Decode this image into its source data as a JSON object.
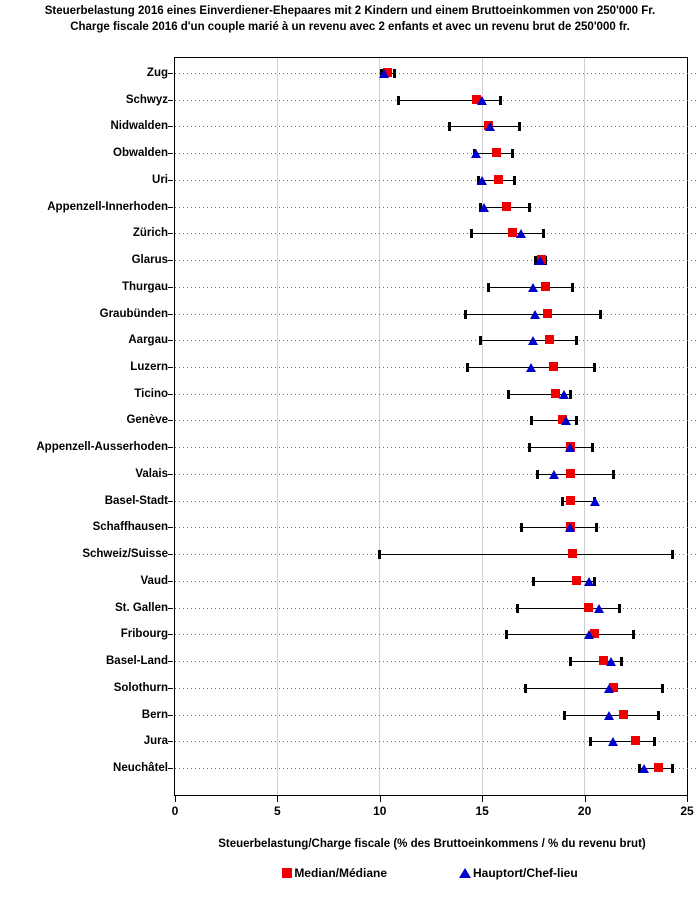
{
  "title": {
    "line1": "Steuerbelastung 2016 eines Einverdiener-Ehepaares mit 2 Kindern und einem Bruttoeinkommen von 250'000 Fr.",
    "line2": "Charge fiscale 2016 d'un couple marié à un revenu avec 2 enfants et avec un revenu brut de 250'000 fr."
  },
  "colors": {
    "median": "#ee0000",
    "hauptort": "#0000cc",
    "grid": "#cfcfcf",
    "leader": "#6e6e6e",
    "axis": "#000000"
  },
  "chart_data": {
    "type": "scatter",
    "subtype": "dot-plot-with-range-bars",
    "title": "Steuerbelastung 2016 eines Einverdiener-Ehepaares mit 2 Kindern und einem Bruttoeinkommen von 250'000 Fr. / Charge fiscale 2016 d'un couple marié à un revenu avec 2 enfants et avec un revenu brut de 250'000 fr.",
    "xlabel": "Steuerbelastung/Charge fiscale (% des Bruttoeinkommens / % du revenu brut)",
    "ylabel": "",
    "xlim": [
      0,
      25
    ],
    "xticks": [
      0,
      5,
      10,
      15,
      20,
      25
    ],
    "grid": "vertical gridlines at major ticks; dotted horizontal leader per row",
    "legend_position": "bottom-center",
    "legend": [
      {
        "label": "Median/Médiane",
        "marker": "square",
        "color": "#ee0000"
      },
      {
        "label": "Hauptort/Chef-lieu",
        "marker": "triangle",
        "color": "#0000cc"
      }
    ],
    "rows": [
      {
        "canton": "Zug",
        "min": 10.1,
        "max": 10.7,
        "median": 10.4,
        "hauptort": 10.2
      },
      {
        "canton": "Schwyz",
        "min": 10.9,
        "max": 15.9,
        "median": 14.7,
        "hauptort": 15.0
      },
      {
        "canton": "Nidwalden",
        "min": 13.4,
        "max": 16.8,
        "median": 15.3,
        "hauptort": 15.4
      },
      {
        "canton": "Obwalden",
        "min": 14.6,
        "max": 16.5,
        "median": 15.7,
        "hauptort": 14.7
      },
      {
        "canton": "Uri",
        "min": 14.8,
        "max": 16.6,
        "median": 15.8,
        "hauptort": 15.0
      },
      {
        "canton": "Appenzell-Innerhoden",
        "min": 14.9,
        "max": 17.3,
        "median": 16.2,
        "hauptort": 15.1
      },
      {
        "canton": "Zürich",
        "min": 14.5,
        "max": 18.0,
        "median": 16.5,
        "hauptort": 16.9
      },
      {
        "canton": "Glarus",
        "min": 17.6,
        "max": 18.1,
        "median": 17.9,
        "hauptort": 17.8
      },
      {
        "canton": "Thurgau",
        "min": 15.3,
        "max": 19.4,
        "median": 18.1,
        "hauptort": 17.5
      },
      {
        "canton": "Graubünden",
        "min": 14.2,
        "max": 20.8,
        "median": 18.2,
        "hauptort": 17.6
      },
      {
        "canton": "Aargau",
        "min": 14.9,
        "max": 19.6,
        "median": 18.3,
        "hauptort": 17.5
      },
      {
        "canton": "Luzern",
        "min": 14.3,
        "max": 20.5,
        "median": 18.5,
        "hauptort": 17.4
      },
      {
        "canton": "Ticino",
        "min": 16.3,
        "max": 19.3,
        "median": 18.6,
        "hauptort": 19.0
      },
      {
        "canton": "Genève",
        "min": 17.4,
        "max": 19.6,
        "median": 18.9,
        "hauptort": 19.1
      },
      {
        "canton": "Appenzell-Ausserhoden",
        "min": 17.3,
        "max": 20.4,
        "median": 19.3,
        "hauptort": 19.3
      },
      {
        "canton": "Valais",
        "min": 17.7,
        "max": 21.4,
        "median": 19.3,
        "hauptort": 18.5
      },
      {
        "canton": "Basel-Stadt",
        "min": 18.9,
        "max": 20.5,
        "median": 19.3,
        "hauptort": 20.5
      },
      {
        "canton": "Schaffhausen",
        "min": 16.9,
        "max": 20.6,
        "median": 19.3,
        "hauptort": 19.3
      },
      {
        "canton": "Schweiz/Suisse",
        "min": 10.0,
        "max": 24.3,
        "median": 19.4,
        "hauptort": null
      },
      {
        "canton": "Vaud",
        "min": 17.5,
        "max": 20.5,
        "median": 19.6,
        "hauptort": 20.2
      },
      {
        "canton": "St. Gallen",
        "min": 16.7,
        "max": 21.7,
        "median": 20.2,
        "hauptort": 20.7
      },
      {
        "canton": "Fribourg",
        "min": 16.2,
        "max": 22.4,
        "median": 20.5,
        "hauptort": 20.2
      },
      {
        "canton": "Basel-Land",
        "min": 19.3,
        "max": 21.8,
        "median": 20.9,
        "hauptort": 21.3
      },
      {
        "canton": "Solothurn",
        "min": 17.1,
        "max": 23.8,
        "median": 21.4,
        "hauptort": 21.2
      },
      {
        "canton": "Bern",
        "min": 19.0,
        "max": 23.6,
        "median": 21.9,
        "hauptort": 21.2
      },
      {
        "canton": "Jura",
        "min": 20.3,
        "max": 23.4,
        "median": 22.5,
        "hauptort": 21.4
      },
      {
        "canton": "Neuchâtel",
        "min": 22.7,
        "max": 24.3,
        "median": 23.6,
        "hauptort": 22.9
      }
    ]
  }
}
